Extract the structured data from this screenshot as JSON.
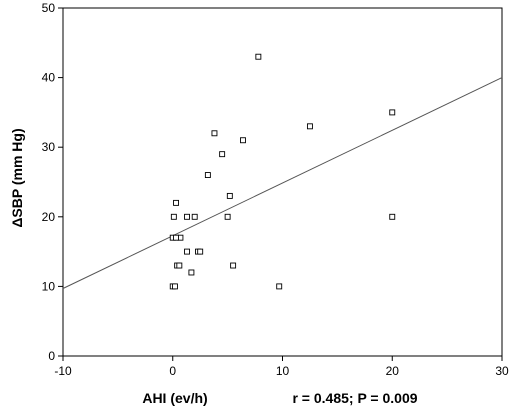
{
  "chart_data": {
    "type": "scatter",
    "title": "",
    "xlabel": "AHI (ev/h)",
    "ylabel": "ΔSBP (mm Hg)",
    "annotation": "r = 0.485; P = 0.009",
    "xlim": [
      -10,
      30
    ],
    "ylim": [
      0,
      50
    ],
    "x_ticks": [
      -10,
      0,
      10,
      20,
      30
    ],
    "y_ticks": [
      0,
      10,
      20,
      30,
      40,
      50
    ],
    "grid": false,
    "marker": "open-square",
    "colors": {
      "marker": "#000000",
      "trendline": "#555555",
      "axis": "#000000"
    },
    "points": [
      {
        "x": 0.0,
        "y": 10
      },
      {
        "x": 0.2,
        "y": 10
      },
      {
        "x": 0.4,
        "y": 13
      },
      {
        "x": 0.6,
        "y": 13
      },
      {
        "x": 0.7,
        "y": 17
      },
      {
        "x": 0.0,
        "y": 17
      },
      {
        "x": 0.3,
        "y": 17
      },
      {
        "x": 0.1,
        "y": 20
      },
      {
        "x": 0.3,
        "y": 22
      },
      {
        "x": 1.3,
        "y": 15
      },
      {
        "x": 1.3,
        "y": 20
      },
      {
        "x": 1.7,
        "y": 12
      },
      {
        "x": 2.0,
        "y": 20
      },
      {
        "x": 2.3,
        "y": 15
      },
      {
        "x": 2.5,
        "y": 15
      },
      {
        "x": 3.2,
        "y": 26
      },
      {
        "x": 3.8,
        "y": 32
      },
      {
        "x": 4.5,
        "y": 29
      },
      {
        "x": 5.0,
        "y": 20
      },
      {
        "x": 5.2,
        "y": 23
      },
      {
        "x": 5.5,
        "y": 13
      },
      {
        "x": 6.4,
        "y": 31
      },
      {
        "x": 7.8,
        "y": 43
      },
      {
        "x": 9.7,
        "y": 10
      },
      {
        "x": 12.5,
        "y": 33
      },
      {
        "x": 20.0,
        "y": 35
      },
      {
        "x": 20.0,
        "y": 20
      }
    ],
    "trendline": {
      "x": [
        -10,
        30
      ],
      "y": [
        9.7,
        40.0
      ]
    }
  }
}
